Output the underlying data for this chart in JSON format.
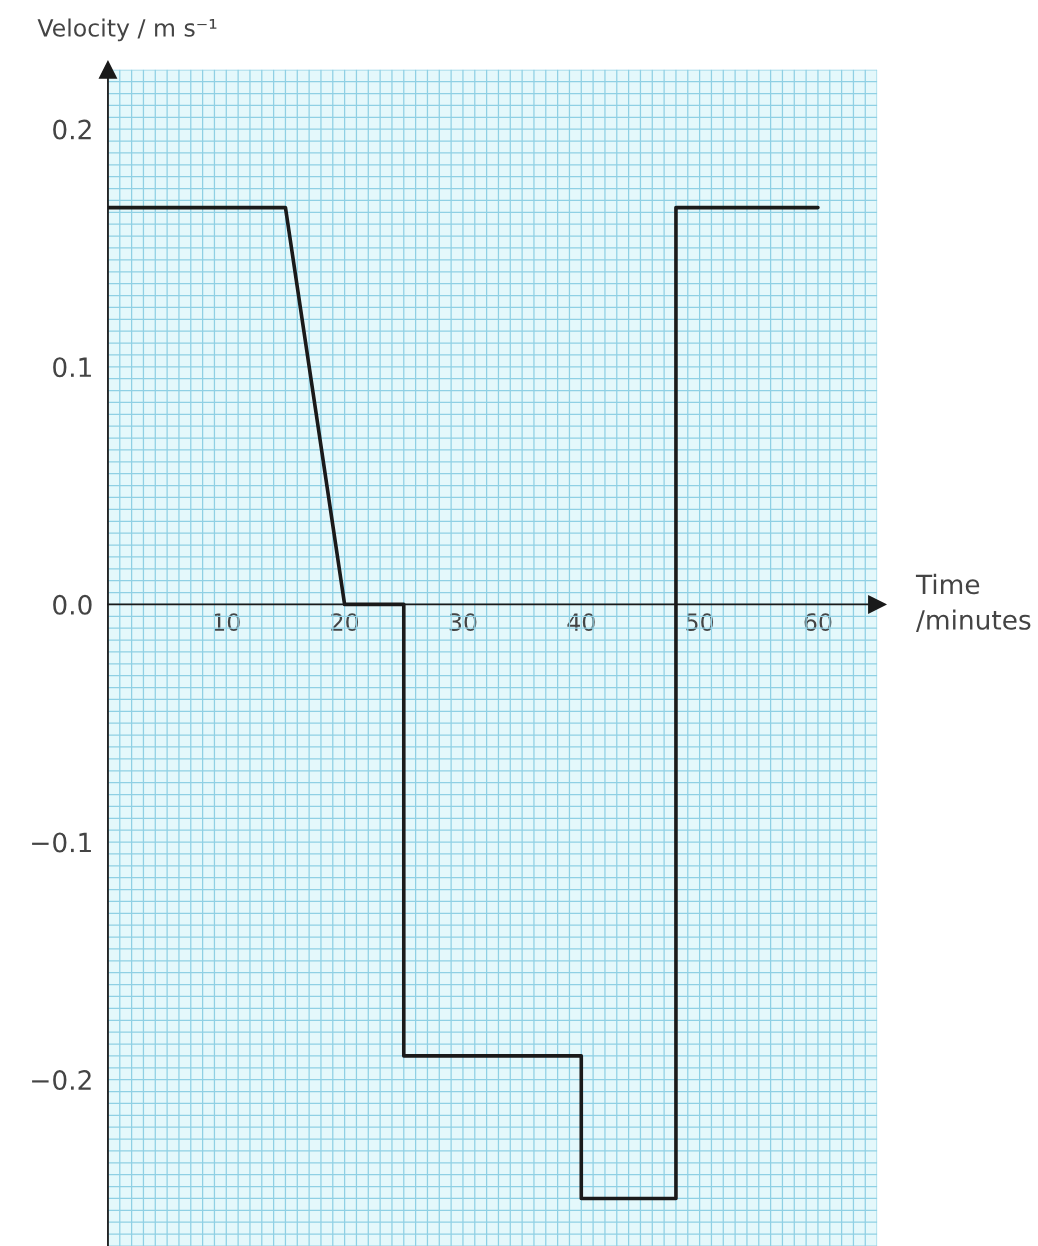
{
  "chart_data": {
    "type": "line",
    "xlabel": "Time\n/minutes",
    "ylabel": "Velocity / m s⁻¹",
    "x": [
      0,
      15,
      20,
      25,
      25,
      40,
      40,
      48,
      48,
      60
    ],
    "series": [
      {
        "color": "#1a1a1a",
        "values": [
          0.167,
          0.167,
          0,
          0,
          -0.19,
          -0.19,
          -0.25,
          -0.25,
          0.167,
          0.167
        ]
      }
    ],
    "xlim": [
      0,
      65
    ],
    "ylim": [
      -0.27,
      0.225
    ],
    "xticks": [
      10,
      20,
      30,
      40,
      50,
      60
    ],
    "yticks": [
      {
        "value": 0.2,
        "label": "0.2"
      },
      {
        "value": 0.1,
        "label": "0.1"
      },
      {
        "value": 0,
        "label": "0.0"
      },
      {
        "value": -0.1,
        "label": "−0.1"
      },
      {
        "value": -0.2,
        "label": "−0.2"
      }
    ],
    "grid": true,
    "marker": "none",
    "line_style": "solid"
  }
}
